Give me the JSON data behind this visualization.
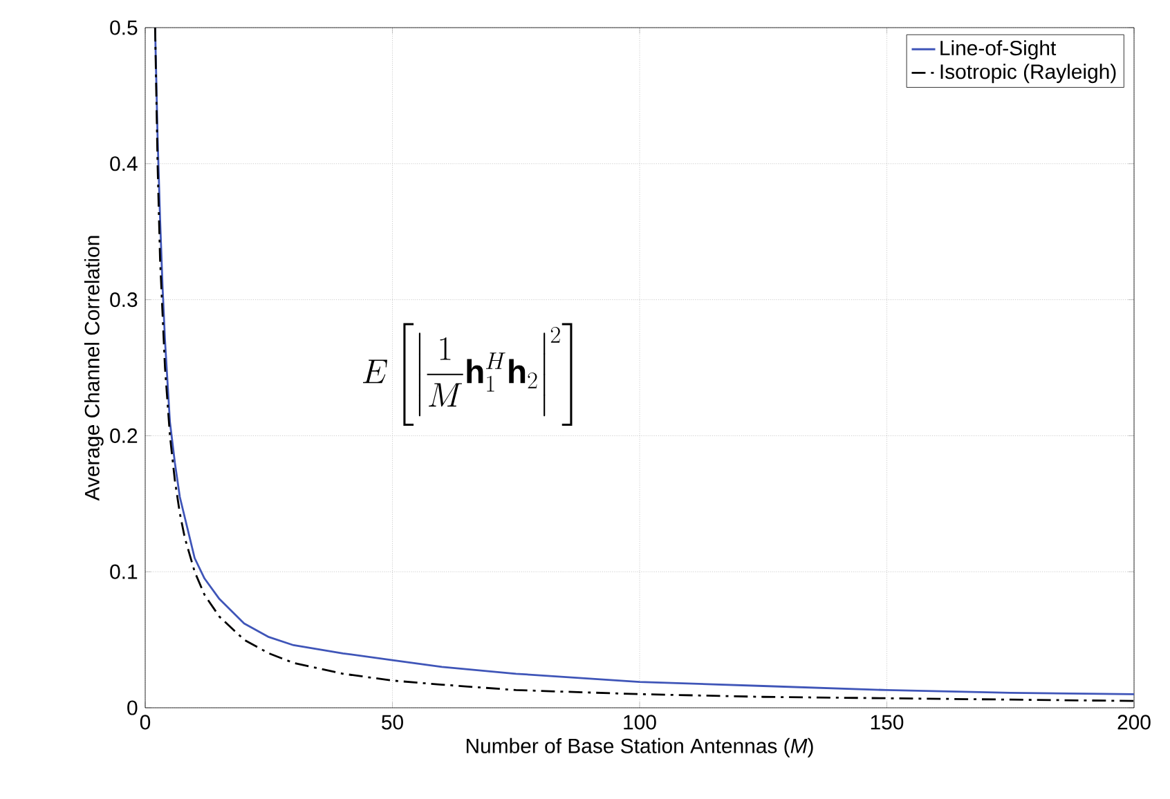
{
  "chart_data": {
    "type": "line",
    "xlabel": "Number of Base Station Antennas (*M*)",
    "ylabel": "Average Channel Correlation",
    "annotations": [
      "E\\left[\\left|\\frac{1}{M}\\mathbf{h}_1^H\\mathbf{h}_2\\right|^2\\right]"
    ],
    "xlim": [
      0,
      200
    ],
    "ylim": [
      0,
      0.5
    ],
    "xticks": [
      0,
      50,
      100,
      150,
      200
    ],
    "yticks": [
      0,
      0.1,
      0.2,
      0.3,
      0.4,
      0.5
    ],
    "grid": true,
    "legend": "top right",
    "marker": "none",
    "series": [
      {
        "name": "Line-of-Sight",
        "color": "#3f55b8",
        "line_style": "solid",
        "x": [
          2,
          2.5,
          3,
          3.5,
          4,
          5,
          6,
          7,
          8,
          10,
          12,
          15,
          20,
          25,
          30,
          40,
          50,
          60,
          75,
          100,
          125,
          150,
          175,
          200
        ],
        "values": [
          0.5,
          0.42,
          0.36,
          0.31,
          0.27,
          0.21,
          0.18,
          0.155,
          0.14,
          0.11,
          0.095,
          0.08,
          0.062,
          0.052,
          0.046,
          0.04,
          0.035,
          0.03,
          0.025,
          0.019,
          0.016,
          0.013,
          0.011,
          0.01
        ]
      },
      {
        "name": "Isotropic (Rayleigh)",
        "color": "#000000",
        "line_style": "dashdot",
        "x": [
          2,
          2.5,
          3,
          3.5,
          4,
          5,
          6,
          7,
          8,
          10,
          12,
          15,
          20,
          25,
          30,
          40,
          50,
          60,
          75,
          100,
          125,
          150,
          175,
          200
        ],
        "values": [
          0.5,
          0.4,
          0.33,
          0.29,
          0.25,
          0.2,
          0.167,
          0.143,
          0.125,
          0.1,
          0.083,
          0.067,
          0.05,
          0.04,
          0.033,
          0.025,
          0.02,
          0.017,
          0.013,
          0.01,
          0.008,
          0.007,
          0.006,
          0.005
        ]
      }
    ]
  }
}
